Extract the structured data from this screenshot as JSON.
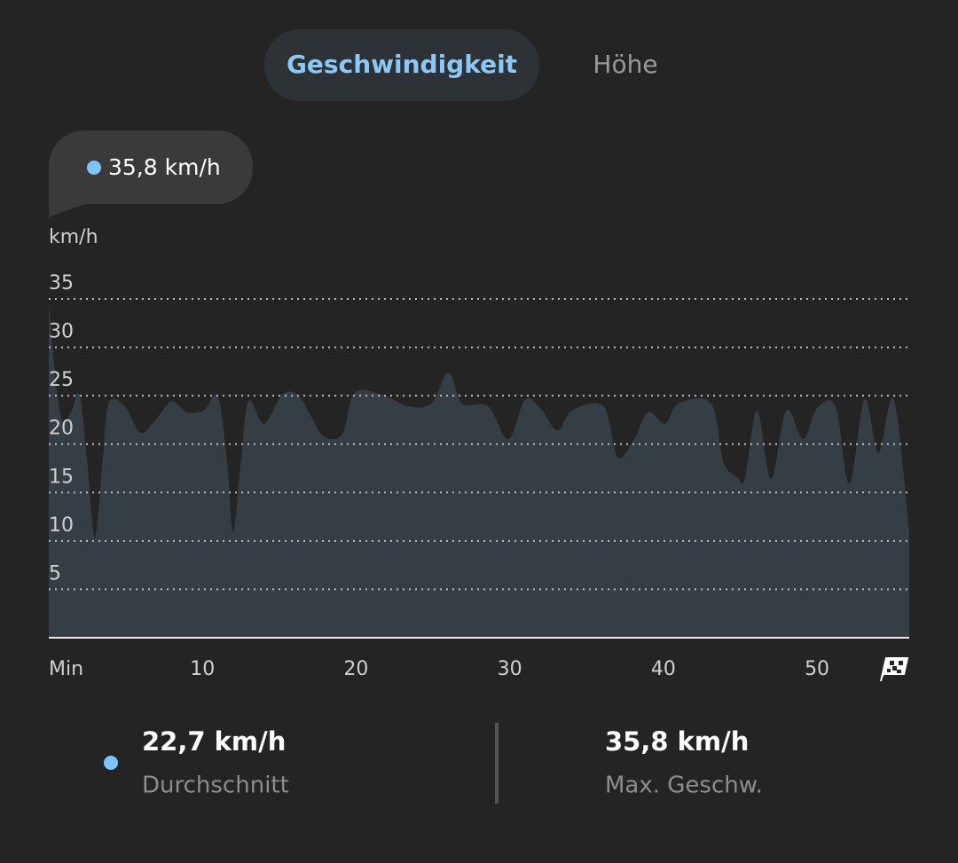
{
  "tabs": [
    "Geschwindigkeit",
    "Höhe"
  ],
  "tooltip": "35,8 km/h",
  "chart_data": {
    "type": "area",
    "y_label": "km/h",
    "color": "#343e44",
    "grid": true,
    "xlim": [
      0,
      56
    ],
    "ylim": [
      0,
      35
    ],
    "xticks": [
      {
        "value": 0,
        "label": "Min"
      },
      10,
      20,
      30,
      40,
      50
    ],
    "yticks": [
      5,
      10,
      15,
      20,
      25,
      30,
      35
    ],
    "x": [
      0,
      0.4,
      0.87,
      1.45,
      2.0,
      2.5,
      3.0,
      3.5,
      3.9,
      4.9,
      5.95,
      6.9,
      7.98,
      8.96,
      10.1,
      11.0,
      11.6,
      12.0,
      12.5,
      13.0,
      14.0,
      15.2,
      16.2,
      17.1,
      17.9,
      19.1,
      19.9,
      21.7,
      23.4,
      24.9,
      26.0,
      26.9,
      28.6,
      29.9,
      31.0,
      32.1,
      33.1,
      34.1,
      36.1,
      37.0,
      38.0,
      39.0,
      40.1,
      41.0,
      43.1,
      43.9,
      44.8,
      45.3,
      46.1,
      47.0,
      48.0,
      49.1,
      50.0,
      51.2,
      52.1,
      53.1,
      54.0,
      55.0,
      56.0
    ],
    "values": [
      34.7,
      27.4,
      22.4,
      23.3,
      25.1,
      18.2,
      10.4,
      18.2,
      24.2,
      24.0,
      21.2,
      22.4,
      24.4,
      23.3,
      23.5,
      24.9,
      18.2,
      10.9,
      18.2,
      24.5,
      22.1,
      25.1,
      25.1,
      22.8,
      20.8,
      21.0,
      25.3,
      25.1,
      23.9,
      24.2,
      27.4,
      24.2,
      23.9,
      20.5,
      24.6,
      23.5,
      21.4,
      23.5,
      23.9,
      18.7,
      20.2,
      23.3,
      22.1,
      24.2,
      24.2,
      18.2,
      16.6,
      16.4,
      23.5,
      16.4,
      23.5,
      20.5,
      23.7,
      23.9,
      15.9,
      24.6,
      19.1,
      24.6,
      10.9
    ]
  },
  "stats": [
    {
      "value": "22,7 km/h",
      "label": "Durchschnitt"
    },
    {
      "value": "35,8 km/h",
      "label": "Max. Geschw."
    }
  ]
}
